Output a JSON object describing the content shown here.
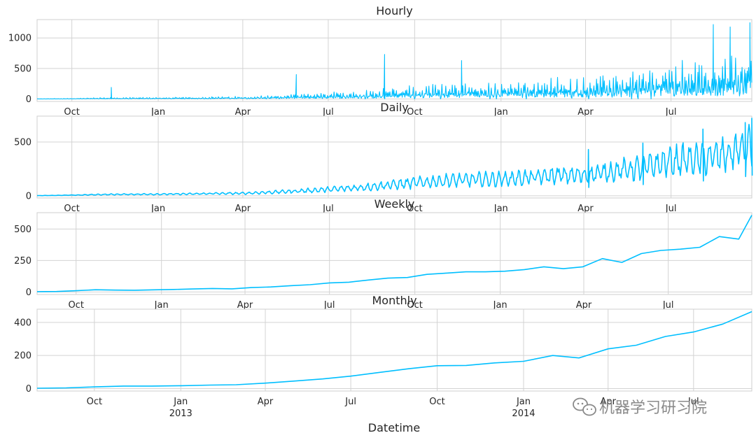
{
  "colors": {
    "series": "#00bfff",
    "grid": "#d3d3d3",
    "frame": "#cfcfcf",
    "text": "#262626"
  },
  "figure": {
    "xlabel": "Datetime",
    "watermark": "机器学习研习院",
    "watermark_icon": "wechat-icon"
  },
  "chart_data": [
    {
      "type": "line",
      "title": "Hourly",
      "x_range": [
        "2012-08-25",
        "2014-09-25"
      ],
      "ylim": [
        -40,
        1300
      ],
      "yticks": [
        0,
        500,
        1000
      ],
      "ytick_labels": [
        "0",
        "500",
        "1000"
      ],
      "xticks": [
        "2012-10-01",
        "2013-01-01",
        "2013-04-01",
        "2013-07-01",
        "2013-10-01",
        "2014-01-01",
        "2014-04-01",
        "2014-07-01"
      ],
      "xtick_labels": [
        "Oct",
        "Jan",
        "Apr",
        "Jul",
        "Oct",
        "Jan",
        "Apr",
        "Jul"
      ],
      "grid": true,
      "x": [
        "2012-08-25",
        "2012-10-01",
        "2012-11-01",
        "2012-12-01",
        "2013-01-01",
        "2013-02-01",
        "2013-03-01",
        "2013-04-01",
        "2013-05-01",
        "2013-06-01",
        "2013-07-01",
        "2013-08-01",
        "2013-09-01",
        "2013-10-01",
        "2013-11-01",
        "2013-12-01",
        "2014-01-01",
        "2014-02-01",
        "2014-03-01",
        "2014-04-01",
        "2014-05-01",
        "2014-06-01",
        "2014-07-01",
        "2014-08-01",
        "2014-09-01",
        "2014-09-25"
      ],
      "values": [
        2,
        6,
        12,
        14,
        15,
        17,
        21,
        23,
        33,
        45,
        58,
        75,
        98,
        120,
        140,
        150,
        155,
        170,
        190,
        190,
        230,
        260,
        320,
        340,
        390,
        470
      ],
      "series": [
        {
          "name": "",
          "peaks": [
            {
              "x": "2012-11-12",
              "y": 190
            },
            {
              "x": "2013-05-28",
              "y": 400
            },
            {
              "x": "2013-08-30",
              "y": 730
            },
            {
              "x": "2013-11-20",
              "y": 630
            },
            {
              "x": "2014-08-15",
              "y": 1220
            },
            {
              "x": "2014-09-02",
              "y": 1180
            },
            {
              "x": "2014-09-23",
              "y": 1250
            }
          ]
        }
      ]
    },
    {
      "type": "line",
      "title": "Daily",
      "x_range": [
        "2012-08-25",
        "2014-09-25"
      ],
      "ylim": [
        -20,
        740
      ],
      "yticks": [
        0,
        500
      ],
      "ytick_labels": [
        "0",
        "500"
      ],
      "xticks": [
        "2012-10-01",
        "2013-01-01",
        "2013-04-01",
        "2013-07-01",
        "2013-10-01",
        "2014-01-01",
        "2014-04-01",
        "2014-07-01"
      ],
      "xtick_labels": [
        "Oct",
        "Jan",
        "Apr",
        "Jul",
        "Oct",
        "Jan",
        "Apr",
        "Jul"
      ],
      "grid": true,
      "x": [
        "2012-08-25",
        "2012-10-01",
        "2012-11-01",
        "2012-12-01",
        "2013-01-01",
        "2013-02-01",
        "2013-03-01",
        "2013-04-01",
        "2013-05-01",
        "2013-06-01",
        "2013-07-01",
        "2013-08-01",
        "2013-09-01",
        "2013-10-01",
        "2013-11-01",
        "2013-12-01",
        "2014-01-01",
        "2014-02-01",
        "2014-03-01",
        "2014-04-01",
        "2014-05-01",
        "2014-06-01",
        "2014-07-01",
        "2014-08-01",
        "2014-09-01",
        "2014-09-25"
      ],
      "values": [
        2,
        6,
        12,
        14,
        15,
        17,
        21,
        23,
        33,
        45,
        58,
        75,
        98,
        120,
        140,
        150,
        155,
        170,
        190,
        190,
        230,
        260,
        320,
        340,
        390,
        470
      ],
      "series": [
        {
          "name": "",
          "peaks": [
            {
              "x": "2014-04-04",
              "y": 430
            },
            {
              "x": "2014-06-01",
              "y": 490
            },
            {
              "x": "2014-08-04",
              "y": 620
            },
            {
              "x": "2014-09-18",
              "y": 680
            },
            {
              "x": "2014-09-25",
              "y": 720
            }
          ]
        }
      ]
    },
    {
      "type": "line",
      "title": "Weekly",
      "x_range": [
        "2012-08-20",
        "2014-09-29"
      ],
      "ylim": [
        -20,
        630
      ],
      "yticks": [
        0,
        250,
        500
      ],
      "ytick_labels": [
        "0",
        "250",
        "500"
      ],
      "xticks": [
        "2012-10-01",
        "2013-01-01",
        "2013-04-01",
        "2013-07-01",
        "2013-10-01",
        "2014-01-01",
        "2014-04-01",
        "2014-07-01"
      ],
      "xtick_labels": [
        "Oct",
        "Jan",
        "Apr",
        "Jul",
        "Oct",
        "Jan",
        "Apr",
        "Jul"
      ],
      "grid": true,
      "x": [
        "2012-08-20",
        "2012-09-10",
        "2012-10-01",
        "2012-10-22",
        "2012-11-12",
        "2012-12-03",
        "2012-12-24",
        "2013-01-14",
        "2013-02-04",
        "2013-02-25",
        "2013-03-18",
        "2013-04-08",
        "2013-04-29",
        "2013-05-20",
        "2013-06-10",
        "2013-07-01",
        "2013-07-22",
        "2013-08-12",
        "2013-09-02",
        "2013-09-23",
        "2013-10-14",
        "2013-11-04",
        "2013-11-25",
        "2013-12-16",
        "2014-01-06",
        "2014-01-27",
        "2014-02-17",
        "2014-03-10",
        "2014-03-31",
        "2014-04-21",
        "2014-05-12",
        "2014-06-02",
        "2014-06-23",
        "2014-07-14",
        "2014-08-04",
        "2014-08-25",
        "2014-09-15",
        "2014-09-29"
      ],
      "values": [
        3,
        4,
        10,
        18,
        15,
        14,
        17,
        20,
        24,
        28,
        25,
        35,
        40,
        50,
        58,
        72,
        78,
        95,
        110,
        115,
        140,
        150,
        160,
        160,
        165,
        178,
        200,
        185,
        200,
        265,
        235,
        305,
        330,
        340,
        355,
        440,
        420,
        610
      ],
      "series": [
        {
          "name": ""
        }
      ]
    },
    {
      "type": "line",
      "title": "Monthly",
      "x_range": [
        "2012-08-01",
        "2014-09-01"
      ],
      "ylim": [
        -15,
        480
      ],
      "yticks": [
        0,
        200,
        400
      ],
      "ytick_labels": [
        "0",
        "200",
        "400"
      ],
      "xticks": [
        "2012-10-01",
        "2013-01-01",
        "2013-04-01",
        "2013-07-01",
        "2013-10-01",
        "2014-01-01",
        "2014-04-01",
        "2014-07-01"
      ],
      "xtick_labels": [
        "Oct",
        "Jan\n2013",
        "Apr",
        "Jul",
        "Oct",
        "Jan\n2014",
        "Apr",
        "Jul"
      ],
      "grid": true,
      "x": [
        "2012-08-01",
        "2012-09-01",
        "2012-10-01",
        "2012-11-01",
        "2012-12-01",
        "2013-01-01",
        "2013-02-01",
        "2013-03-01",
        "2013-04-01",
        "2013-05-01",
        "2013-06-01",
        "2013-07-01",
        "2013-08-01",
        "2013-09-01",
        "2013-10-01",
        "2013-11-01",
        "2013-12-01",
        "2014-01-01",
        "2014-02-01",
        "2014-03-01",
        "2014-04-01",
        "2014-05-01",
        "2014-06-01",
        "2014-07-01",
        "2014-08-01",
        "2014-09-01"
      ],
      "values": [
        2,
        4,
        10,
        15,
        15,
        17,
        21,
        23,
        33,
        45,
        58,
        75,
        98,
        120,
        138,
        140,
        155,
        165,
        200,
        185,
        240,
        262,
        315,
        342,
        390,
        465
      ],
      "series": [
        {
          "name": ""
        }
      ]
    }
  ]
}
